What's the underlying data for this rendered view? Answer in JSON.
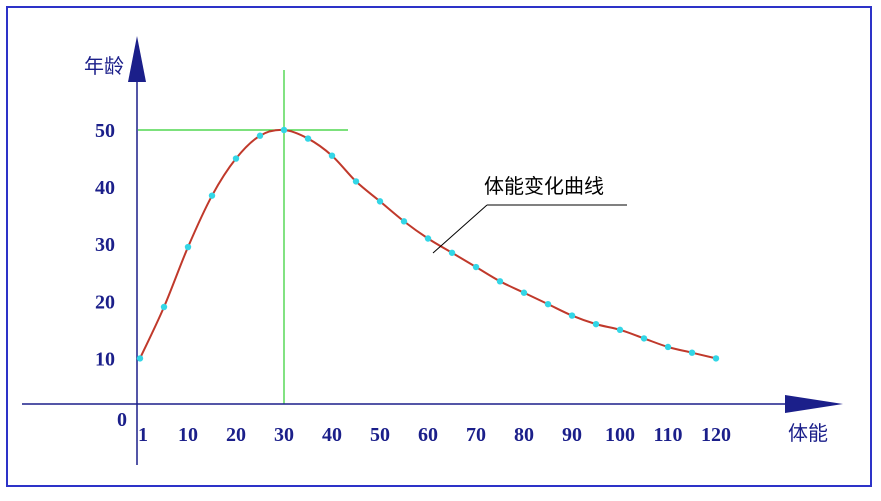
{
  "chart_data": {
    "type": "line",
    "title": "",
    "xlabel": "体能",
    "ylabel": "年龄",
    "origin_label": "0",
    "x_tick_labels": [
      "1",
      "10",
      "20",
      "30",
      "40",
      "50",
      "60",
      "70",
      "80",
      "90",
      "100",
      "110",
      "120"
    ],
    "y_tick_labels": [
      "10",
      "20",
      "30",
      "40",
      "50"
    ],
    "xlim": [
      0,
      120
    ],
    "ylim": [
      0,
      50
    ],
    "grid": false,
    "annotation": "体能变化曲线",
    "guide_point": {
      "x": 30,
      "y": 50
    },
    "series": [
      {
        "x": [
          0,
          5,
          10,
          15,
          20,
          25,
          30,
          35,
          40,
          45,
          50,
          55,
          60,
          65,
          70,
          75,
          80,
          85,
          90,
          95,
          100,
          105,
          110,
          115,
          120
        ],
        "y": [
          10,
          19,
          29.5,
          38.5,
          45,
          49,
          50,
          48.5,
          45.5,
          41,
          37.5,
          34,
          31,
          28.5,
          26,
          23.5,
          21.5,
          19.5,
          17.5,
          16,
          15,
          13.5,
          12,
          11,
          10
        ]
      }
    ]
  },
  "colors": {
    "frame_border": "#2d33c8",
    "axis": "#1b1f8a",
    "curve": "#c0392b",
    "markers": "#33d6e6",
    "guide_lines": "#2fcf2f",
    "annotation_leader": "#000000"
  }
}
